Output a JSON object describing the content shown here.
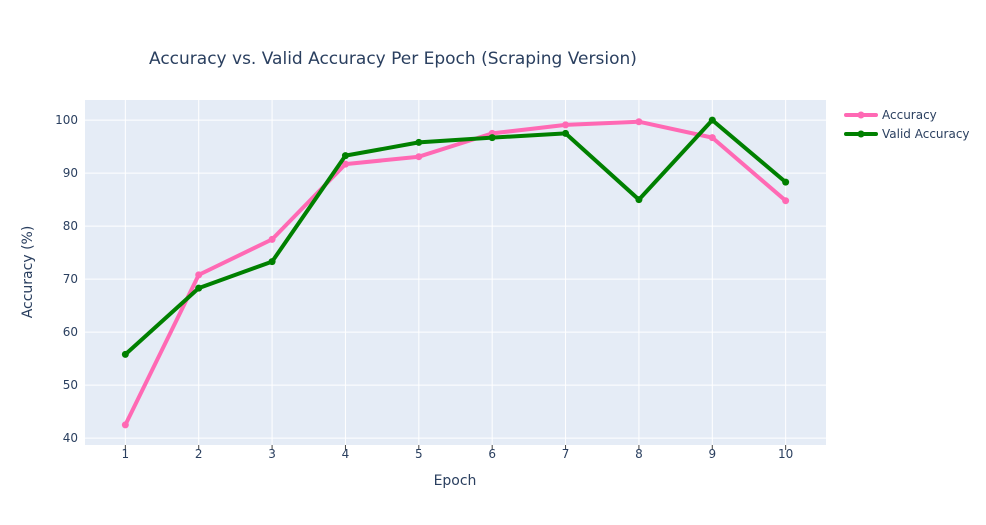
{
  "chart_data": {
    "type": "line",
    "title": "Accuracy vs. Valid Accuracy Per Epoch (Scraping Version)",
    "xlabel": "Epoch",
    "ylabel": "Accuracy (%)",
    "x": [
      1,
      2,
      3,
      4,
      5,
      6,
      7,
      8,
      9,
      10
    ],
    "x_ticks": [
      "1",
      "2",
      "3",
      "4",
      "5",
      "6",
      "7",
      "8",
      "9",
      "10"
    ],
    "xlim": [
      0.45,
      10.55
    ],
    "ylim": [
      38.7,
      103.8
    ],
    "y_ticks": [
      40,
      50,
      60,
      70,
      80,
      90,
      100
    ],
    "grid": true,
    "legend_position": "top-right",
    "background_color": "#e5ecf6",
    "series": [
      {
        "name": "Accuracy",
        "color": "#ff69b4",
        "values": [
          42.5,
          70.8,
          77.5,
          91.7,
          93.1,
          97.5,
          99.1,
          99.7,
          96.7,
          84.8
        ]
      },
      {
        "name": "Valid Accuracy",
        "color": "#008000",
        "values": [
          55.8,
          68.3,
          73.3,
          93.3,
          95.8,
          96.7,
          97.5,
          85.0,
          100.0,
          88.3
        ]
      }
    ]
  }
}
